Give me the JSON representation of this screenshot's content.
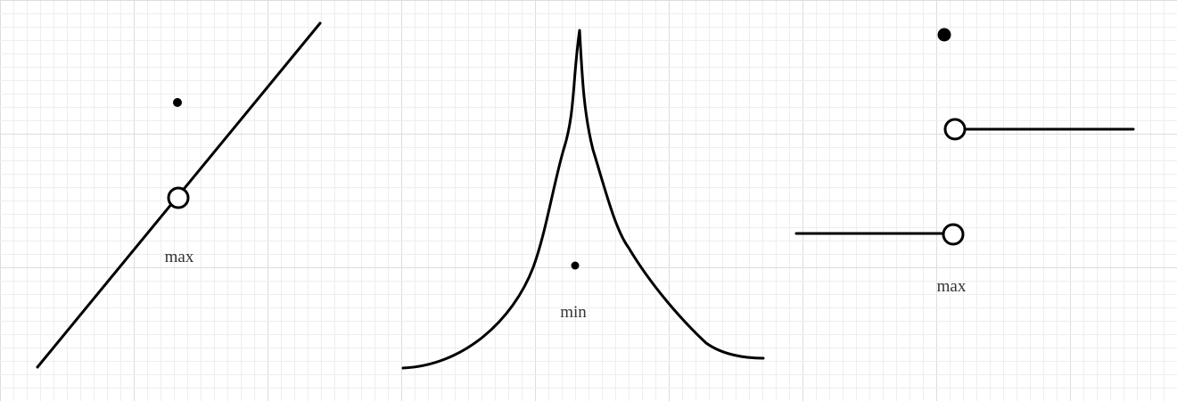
{
  "panels": [
    {
      "label": "max"
    },
    {
      "label": "min"
    },
    {
      "label": "max"
    }
  ],
  "colors": {
    "ink": "#000000",
    "grid_minor": "#eeeeee",
    "grid_major": "#dddddd",
    "text": "#333333"
  }
}
